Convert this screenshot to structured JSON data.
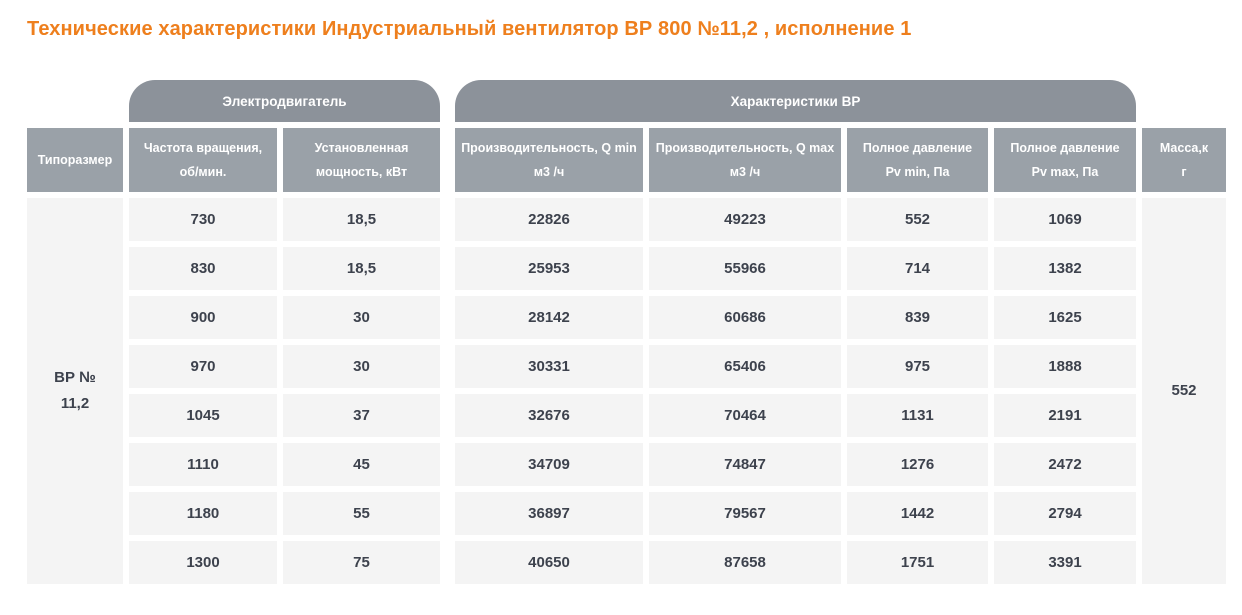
{
  "page_title": "Технические характеристики Индустриальный вентилятор ВР 800 №11,2 , исполнение 1",
  "colors": {
    "title_accent": "#ee7f1d",
    "group_header_bg": "#8c929a",
    "column_header_bg": "#9aa1a8",
    "cell_bg": "#f4f4f4",
    "cell_text": "#3d424d",
    "header_text": "#ffffff"
  },
  "table": {
    "group_headers": {
      "motor": "Электродвигатель",
      "vr": "Характеристики ВР"
    },
    "columns": [
      {
        "line1": "Типоразмер",
        "line2": ""
      },
      {
        "line1": "Частота вращения,",
        "line2": "об/мин."
      },
      {
        "line1": "Установленная",
        "line2": "мощность, кВт"
      },
      {
        "line1": "Производительность, Q min",
        "line2": "м3 /ч"
      },
      {
        "line1": "Производительность, Q max",
        "line2": "м3 /ч"
      },
      {
        "line1": "Полное давление",
        "line2": "Pv min, Па"
      },
      {
        "line1": "Полное давление",
        "line2": "Pv max, Па"
      },
      {
        "line1": "Масса,к",
        "line2": "г"
      }
    ],
    "typoraz": {
      "line1": "ВР №",
      "line2": "11,2"
    },
    "mass": "552",
    "rows": [
      [
        "730",
        "18,5",
        "22826",
        "49223",
        "552",
        "1069"
      ],
      [
        "830",
        "18,5",
        "25953",
        "55966",
        "714",
        "1382"
      ],
      [
        "900",
        "30",
        "28142",
        "60686",
        "839",
        "1625"
      ],
      [
        "970",
        "30",
        "30331",
        "65406",
        "975",
        "1888"
      ],
      [
        "1045",
        "37",
        "32676",
        "70464",
        "1131",
        "2191"
      ],
      [
        "1110",
        "45",
        "34709",
        "74847",
        "1276",
        "2472"
      ],
      [
        "1180",
        "55",
        "36897",
        "79567",
        "1442",
        "2794"
      ],
      [
        "1300",
        "75",
        "40650",
        "87658",
        "1751",
        "3391"
      ]
    ]
  }
}
